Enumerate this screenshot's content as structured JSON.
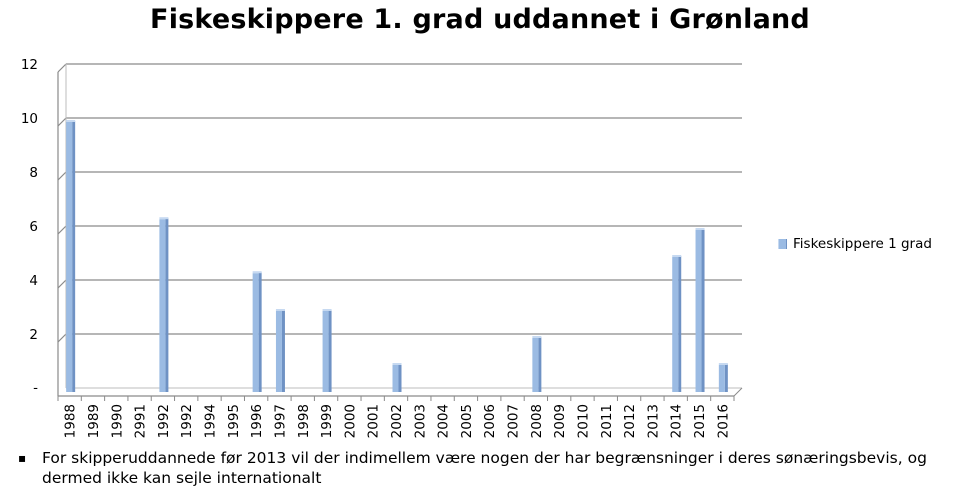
{
  "chart_data": {
    "type": "bar",
    "title": "Fiskeskippere 1. grad uddannet i Grønland",
    "categories": [
      "1988",
      "1989",
      "1990",
      "2991",
      "1992",
      "1992",
      "1994",
      "1995",
      "1996",
      "1997",
      "1998",
      "1999",
      "2000",
      "2001",
      "2002",
      "2003",
      "2004",
      "2005",
      "2006",
      "2007",
      "2008",
      "2009",
      "2010",
      "2011",
      "2012",
      "2013",
      "2014",
      "2015",
      "2016"
    ],
    "series": [
      {
        "name": "Fiskeskippere 1 grad",
        "values": [
          10,
          0,
          0,
          0,
          6.4,
          0,
          0,
          0,
          4.4,
          3,
          0,
          3,
          0,
          0,
          1,
          0,
          0,
          0,
          0,
          0,
          2,
          0,
          0,
          0,
          0,
          0,
          5,
          6,
          1
        ]
      }
    ],
    "ylim": [
      0,
      12
    ],
    "yticks": [
      0,
      2,
      4,
      6,
      8,
      10,
      12
    ],
    "ytick_labels": [
      "-",
      "2",
      "4",
      "6",
      "8",
      "10",
      "12"
    ],
    "xlabel": "",
    "ylabel": "",
    "grid": true,
    "legend_position": "right",
    "bar_color": "#9bbbe3",
    "bar_side_color": "#6f92c4",
    "gridline_color": "#8a8a8a"
  },
  "legend": {
    "label": "Fiskeskippere 1 grad"
  },
  "footnote": {
    "bullet": "▪",
    "text": "For skipperuddannede før 2013 vil der indimellem være nogen der har begrænsninger i deres sønæringsbevis, og dermed ikke kan sejle internationalt"
  }
}
